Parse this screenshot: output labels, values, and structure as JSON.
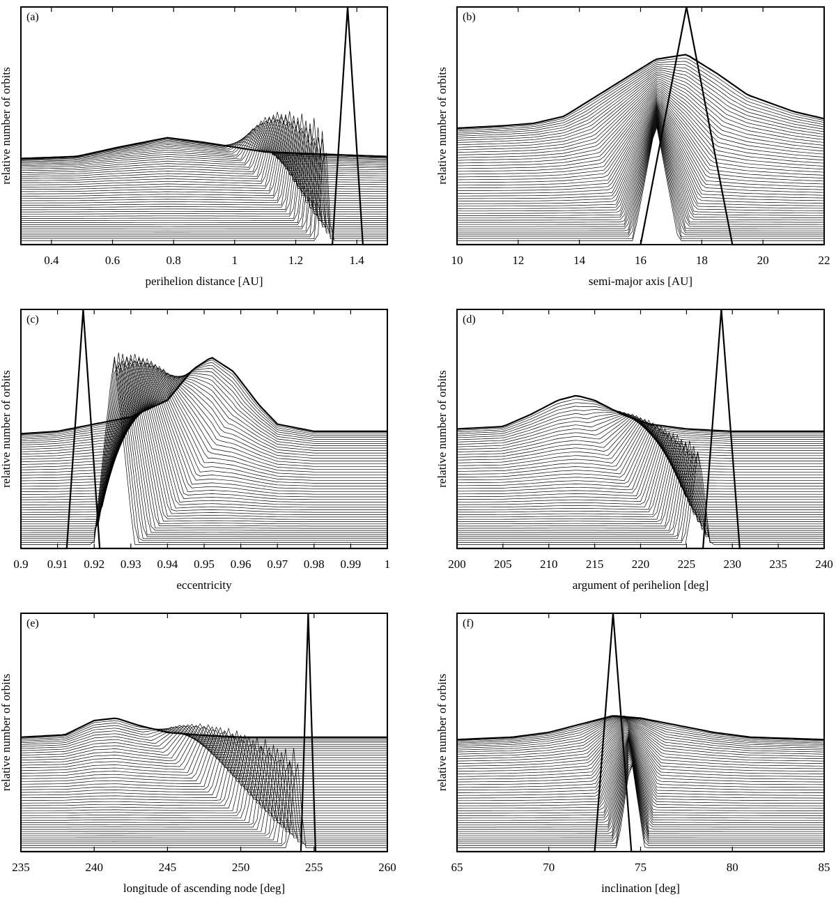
{
  "chart_data": [
    {
      "id": "a",
      "panel_label": "(a)",
      "type": "line",
      "xlabel": "perihelion distance [AU]",
      "ylabel": "relative number of orbits",
      "xlim": [
        0.3,
        1.5
      ],
      "ylim": [
        0,
        1
      ],
      "xticks": [
        0.4,
        0.6,
        0.8,
        1.0,
        1.2,
        1.4
      ],
      "xtick_labels": [
        "0.4",
        "0.6",
        "0.8",
        "1",
        "1.2",
        "1.4"
      ],
      "n_series": 50,
      "initial_distribution": {
        "center": 1.37,
        "halfwidth": 0.05,
        "peak": 1.0
      },
      "final_distribution": {
        "x": [
          0.3,
          0.48,
          0.62,
          0.78,
          0.9,
          1.1,
          1.3,
          1.5
        ],
        "y": [
          0.36,
          0.37,
          0.41,
          0.45,
          0.43,
          0.39,
          0.38,
          0.37
        ]
      },
      "intermediate_peak": {
        "start": 1.3,
        "end": 1.02,
        "base_width": 0.12,
        "height": 0.42
      }
    },
    {
      "id": "b",
      "panel_label": "(b)",
      "type": "line",
      "xlabel": "semi-major axis [AU]",
      "ylabel": "relative number of orbits",
      "xlim": [
        10,
        22
      ],
      "ylim": [
        0,
        1
      ],
      "xticks": [
        10,
        12,
        14,
        16,
        18,
        20,
        22
      ],
      "xtick_labels": [
        "10",
        "12",
        "14",
        "16",
        "18",
        "20",
        "22"
      ],
      "n_series": 50,
      "initial_distribution": {
        "center": 17.5,
        "halfwidth": 1.5,
        "peak": 1.0
      },
      "final_distribution": {
        "x": [
          10,
          11.5,
          12.5,
          13.5,
          14.5,
          16.5,
          17.5,
          18.5,
          19.5,
          21,
          22
        ],
        "y": [
          0.49,
          0.5,
          0.51,
          0.54,
          0.62,
          0.78,
          0.8,
          0.72,
          0.63,
          0.56,
          0.53
        ]
      },
      "intermediate_peak": {
        "start": 16.5,
        "end": 16.6,
        "base_width": 4.0,
        "height": 0.42
      }
    },
    {
      "id": "c",
      "panel_label": "(c)",
      "type": "line",
      "xlabel": "eccentricity",
      "ylabel": "relative number of orbits",
      "xlim": [
        0.9,
        1.0
      ],
      "ylim": [
        0,
        1
      ],
      "xticks": [
        0.9,
        0.91,
        0.92,
        0.93,
        0.94,
        0.95,
        0.96,
        0.97,
        0.98,
        0.99,
        1.0
      ],
      "xtick_labels": [
        "0.9",
        "0.91",
        "0.92",
        "0.93",
        "0.94",
        "0.95",
        "0.96",
        "0.97",
        "0.98",
        "0.99",
        "1"
      ],
      "n_series": 50,
      "initial_distribution": {
        "center": 0.917,
        "halfwidth": 0.0045,
        "peak": 1.0
      },
      "final_distribution": {
        "x": [
          0.9,
          0.91,
          0.92,
          0.93,
          0.94,
          0.947,
          0.952,
          0.958,
          0.965,
          0.97,
          0.98,
          1.0
        ],
        "y": [
          0.48,
          0.49,
          0.52,
          0.55,
          0.62,
          0.75,
          0.8,
          0.74,
          0.6,
          0.52,
          0.49,
          0.49
        ]
      },
      "intermediate_peak": {
        "start": 0.925,
        "end": 0.945,
        "base_width": 0.03,
        "height": 0.68
      }
    },
    {
      "id": "d",
      "panel_label": "(d)",
      "type": "line",
      "xlabel": "argument of perihelion [deg]",
      "ylabel": "relative number of orbits",
      "xlim": [
        200,
        240
      ],
      "ylim": [
        0,
        1
      ],
      "xticks": [
        200,
        205,
        210,
        215,
        220,
        225,
        230,
        235,
        240
      ],
      "xtick_labels": [
        "200",
        "205",
        "210",
        "215",
        "220",
        "225",
        "230",
        "235",
        "240"
      ],
      "n_series": 50,
      "initial_distribution": {
        "center": 228.8,
        "halfwidth": 2.0,
        "peak": 1.0
      },
      "final_distribution": {
        "x": [
          200,
          205,
          208,
          211,
          213,
          215,
          218,
          221,
          225,
          230,
          240
        ],
        "y": [
          0.5,
          0.51,
          0.56,
          0.62,
          0.64,
          0.62,
          0.56,
          0.52,
          0.5,
          0.49,
          0.49
        ]
      },
      "intermediate_peak": {
        "start": 226.5,
        "end": 217,
        "base_width": 7.0,
        "height": 0.35
      }
    },
    {
      "id": "e",
      "panel_label": "(e)",
      "type": "line",
      "xlabel": "longitude of ascending node [deg]",
      "ylabel": "relative number of orbits",
      "xlim": [
        235,
        260
      ],
      "ylim": [
        0,
        1
      ],
      "xticks": [
        235,
        240,
        245,
        250,
        255,
        260
      ],
      "xtick_labels": [
        "235",
        "240",
        "245",
        "250",
        "255",
        "260"
      ],
      "n_series": 50,
      "initial_distribution": {
        "center": 254.6,
        "halfwidth": 0.5,
        "peak": 1.0
      },
      "final_distribution": {
        "x": [
          235,
          238,
          240,
          241.5,
          243,
          245,
          247,
          250,
          255,
          260
        ],
        "y": [
          0.48,
          0.49,
          0.55,
          0.56,
          0.53,
          0.5,
          0.49,
          0.48,
          0.48,
          0.48
        ]
      },
      "intermediate_peak": {
        "start": 254.0,
        "end": 244.5,
        "base_width": 3.0,
        "height": 0.35
      }
    },
    {
      "id": "f",
      "panel_label": "(f)",
      "type": "line",
      "xlabel": "inclination [deg]",
      "ylabel": "relative number of orbits",
      "xlim": [
        65,
        85
      ],
      "ylim": [
        0,
        1
      ],
      "xticks": [
        65,
        70,
        75,
        80,
        85
      ],
      "xtick_labels": [
        "65",
        "70",
        "75",
        "80",
        "85"
      ],
      "n_series": 50,
      "initial_distribution": {
        "center": 73.5,
        "halfwidth": 1.0,
        "peak": 1.0
      },
      "final_distribution": {
        "x": [
          65,
          68,
          70,
          72,
          73.5,
          75,
          77,
          79,
          81,
          85
        ],
        "y": [
          0.47,
          0.48,
          0.5,
          0.54,
          0.57,
          0.56,
          0.53,
          0.5,
          0.48,
          0.47
        ]
      },
      "intermediate_peak": {
        "start": 74.5,
        "end": 74.0,
        "base_width": 4.0,
        "height": 0.32
      }
    }
  ]
}
